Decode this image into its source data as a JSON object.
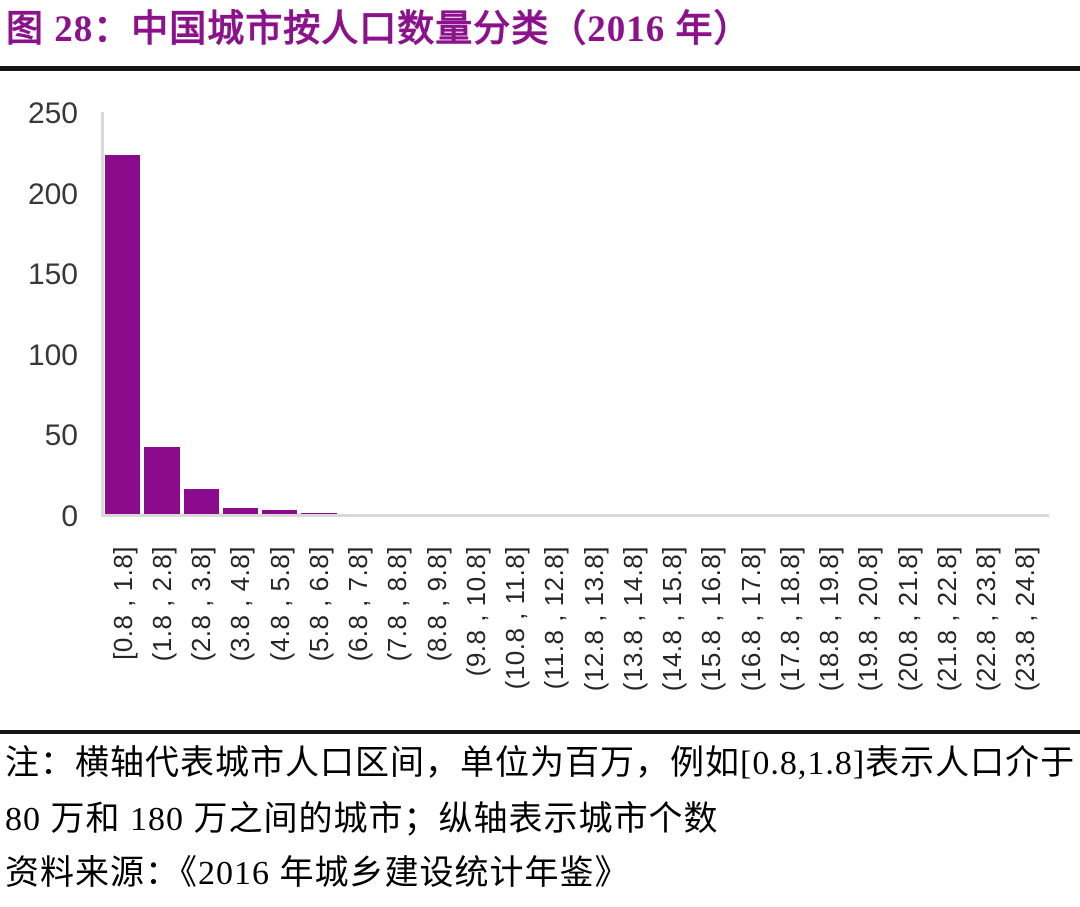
{
  "title": "图 28：中国城市按人口数量分类（2016 年）",
  "notes": {
    "note": "注：横轴代表城市人口区间，单位为百万，例如[0.8,1.8]表示人口介于 80 万和 180 万之间的城市；纵轴表示城市个数",
    "source": "资料来源：《2016 年城乡建设统计年鉴》"
  },
  "colors": {
    "bar": "#8C0A8C",
    "title": "#8B128B",
    "divider": "#151515",
    "axis_line": "#d9d9d9",
    "tick_text": "#383838"
  },
  "chart_data": {
    "type": "bar",
    "categories": [
      "[0.8 , 1.8]",
      "(1.8 , 2.8]",
      "(2.8 , 3.8]",
      "(3.8 , 4.8]",
      "(4.8 , 5.8]",
      "(5.8 , 6.8]",
      "(6.8 , 7.8]",
      "(7.8 , 8.8]",
      "(8.8 , 9.8]",
      "(9.8 , 10.8]",
      "(10.8 , 11.8]",
      "(11.8 , 12.8]",
      "(12.8 , 13.8]",
      "(13.8 , 14.8]",
      "(14.8 , 15.8]",
      "(15.8 , 16.8]",
      "(16.8 , 17.8]",
      "(17.8 , 18.8]",
      "(18.8 , 19.8]",
      "(19.8 , 20.8]",
      "(20.8 , 21.8]",
      "(21.8 , 22.8]",
      "(22.8 , 23.8]",
      "(23.8 , 24.8]"
    ],
    "values": [
      224,
      43,
      17,
      5,
      4,
      2,
      0,
      1,
      0,
      0,
      0,
      0,
      0,
      0,
      0,
      0,
      0,
      0,
      0,
      0,
      0,
      0,
      0,
      1
    ],
    "title": "图 28：中国城市按人口数量分类（2016 年）",
    "xlabel": "",
    "ylabel": "",
    "ylim": [
      0,
      250
    ],
    "yticks": [
      0,
      50,
      100,
      150,
      200,
      250
    ],
    "grid": false,
    "legend": "none"
  }
}
